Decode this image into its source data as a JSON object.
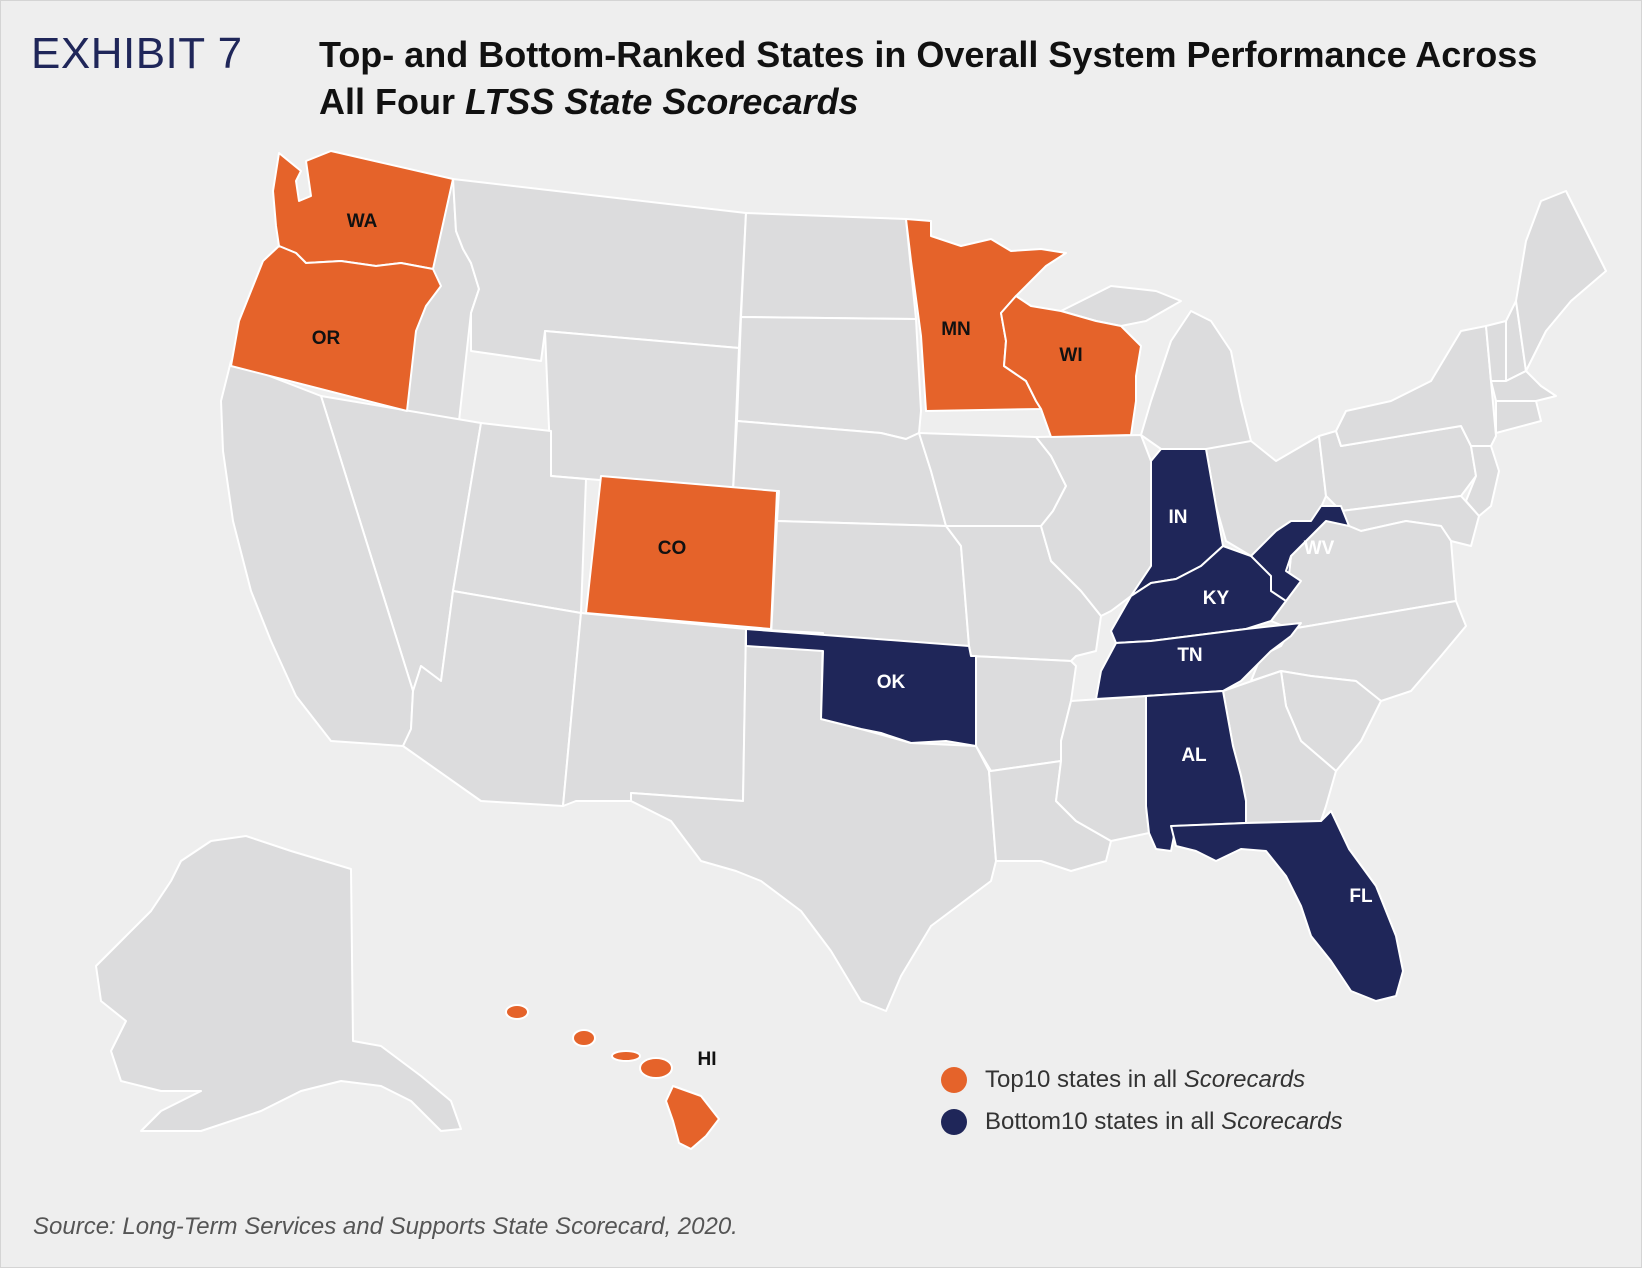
{
  "exhibit_label": "EXHIBIT 7",
  "title": {
    "line1": "Top- and Bottom-Ranked States in Overall System Performance Across",
    "line2_prefix": "All Four ",
    "line2_italic": "LTSS State Scorecards"
  },
  "colors": {
    "top10": "#e5632a",
    "bottom10": "#1f2659",
    "other": "#dcdcdd",
    "background": "#eeeeee"
  },
  "states": {
    "WA": {
      "label": "WA",
      "category": "top10"
    },
    "OR": {
      "label": "OR",
      "category": "top10"
    },
    "MN": {
      "label": "MN",
      "category": "top10"
    },
    "WI": {
      "label": "WI",
      "category": "top10"
    },
    "CO": {
      "label": "CO",
      "category": "top10"
    },
    "HI": {
      "label": "HI",
      "category": "top10"
    },
    "IN": {
      "label": "IN",
      "category": "bottom10"
    },
    "KY": {
      "label": "KY",
      "category": "bottom10"
    },
    "WV": {
      "label": "WV",
      "category": "bottom10"
    },
    "TN": {
      "label": "TN",
      "category": "bottom10"
    },
    "OK": {
      "label": "OK",
      "category": "bottom10"
    },
    "AL": {
      "label": "AL",
      "category": "bottom10"
    },
    "FL": {
      "label": "FL",
      "category": "bottom10"
    }
  },
  "legend": {
    "top": {
      "prefix": "Top10 states in all ",
      "italic": "Scorecards"
    },
    "bottom": {
      "prefix": "Bottom10 states in all ",
      "italic": "Scorecards"
    }
  },
  "source": "Source: Long-Term Services and Supports State Scorecard, 2020."
}
